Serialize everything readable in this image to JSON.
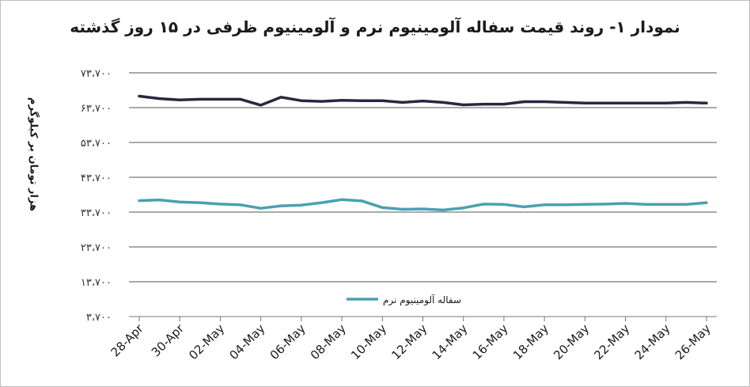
{
  "chart_data": {
    "type": "line",
    "title": "نمودار ۱- روند قیمت سفاله آلومینیوم نرم و آلومینیوم ظرفی در ۱۵ روز گذشته",
    "ylabel": "هزار تومان بر کیلوگرم",
    "xlabel": "",
    "ylim": [
      3700,
      73700
    ],
    "y_ticks": [
      "۳،۷۰۰",
      "۱۳،۷۰۰",
      "۲۳،۷۰۰",
      "۳۳،۷۰۰",
      "۴۳،۷۰۰",
      "۵۳،۷۰۰",
      "۶۳،۷۰۰",
      "۷۳،۷۰۰"
    ],
    "y_tick_values": [
      3700,
      13700,
      23700,
      33700,
      43700,
      53700,
      63700,
      73700
    ],
    "x_tick_labels": [
      "28-Apr",
      "30-Apr",
      "02-May",
      "04-May",
      "06-May",
      "08-May",
      "10-May",
      "12-May",
      "14-May",
      "16-May",
      "18-May",
      "20-May",
      "22-May",
      "24-May",
      "26-May"
    ],
    "x_tick_index": [
      0,
      2,
      4,
      6,
      8,
      10,
      12,
      14,
      16,
      18,
      20,
      22,
      24,
      26,
      28
    ],
    "grid": true,
    "legend_position": "bottom-center",
    "series": [
      {
        "name": "",
        "color": "#2e2540",
        "values": [
          67000,
          66300,
          65900,
          66100,
          66100,
          66100,
          64400,
          66700,
          65700,
          65500,
          65800,
          65700,
          65700,
          65200,
          65600,
          65200,
          64500,
          64700,
          64700,
          65400,
          65400,
          65200,
          65000,
          65000,
          65000,
          65000,
          65000,
          65200,
          65000
        ]
      },
      {
        "name": "سفاله آلومینیوم نرم",
        "color": "#4aa0b1",
        "values": [
          37000,
          37200,
          36600,
          36400,
          36000,
          35800,
          34800,
          35500,
          35700,
          36400,
          37300,
          36900,
          35000,
          34500,
          34600,
          34300,
          34900,
          36000,
          35900,
          35200,
          35800,
          35800,
          35900,
          36000,
          36200,
          35900,
          35900,
          35900,
          36400
        ]
      }
    ]
  }
}
